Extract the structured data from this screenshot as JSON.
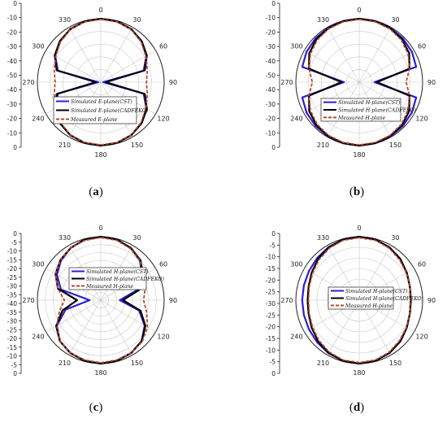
{
  "chart_data": [
    {
      "type": "polar-line",
      "caption": "(a)",
      "theta_ticks": [
        "0",
        "30",
        "60",
        "90",
        "120",
        "150",
        "180",
        "210",
        "240",
        "270",
        "300",
        "330"
      ],
      "r_ticks": [
        "0",
        "-10",
        "-20",
        "-30",
        "-40",
        "-50",
        "-40",
        "-30",
        "-20",
        "-10",
        "0"
      ],
      "rlim": [
        -50,
        0
      ],
      "legend": "center",
      "series": [
        {
          "name": "Simulated E-plane(CST)",
          "color": "#2a1fd4",
          "style": "solid",
          "theta": [
            0,
            15,
            30,
            45,
            60,
            75,
            90,
            105,
            120,
            135,
            150,
            165,
            180,
            195,
            210,
            225,
            240,
            255,
            270,
            285,
            300,
            315,
            330,
            345,
            360
          ],
          "values": [
            0,
            -0.5,
            -1.8,
            -4.5,
            -8.5,
            -15,
            -48,
            -15,
            -8.5,
            -4.5,
            -1.8,
            -0.5,
            0,
            -0.5,
            -1.8,
            -4.5,
            -8.5,
            -15,
            -48,
            -15,
            -8.5,
            -4.5,
            -1.8,
            -0.5,
            0
          ]
        },
        {
          "name": "Simulated E-plane(CADFEKO)",
          "color": "#000000",
          "style": "solid",
          "theta": [
            0,
            15,
            30,
            45,
            60,
            75,
            90,
            105,
            120,
            135,
            150,
            165,
            180,
            195,
            210,
            225,
            240,
            255,
            270,
            285,
            300,
            315,
            330,
            345,
            360
          ],
          "values": [
            0,
            -0.5,
            -1.8,
            -4.3,
            -8,
            -14,
            -46,
            -14,
            -8,
            -4.3,
            -1.8,
            -0.5,
            0,
            -0.5,
            -1.8,
            -4.3,
            -8,
            -14,
            -46,
            -14,
            -8,
            -4.3,
            -1.8,
            -0.5,
            0
          ]
        },
        {
          "name": "Measured E-plane",
          "color": "#b5482d",
          "style": "dashed",
          "theta": [
            0,
            15,
            30,
            45,
            60,
            75,
            90,
            105,
            120,
            135,
            150,
            165,
            180,
            195,
            210,
            225,
            240,
            255,
            270,
            285,
            300,
            315,
            330,
            345,
            360
          ],
          "values": [
            -0.5,
            -0.8,
            -2,
            -5,
            -9,
            -12,
            -14,
            -12,
            -9,
            -5,
            -2,
            -0.8,
            -0.5,
            -0.8,
            -2,
            -5,
            -9,
            -12,
            -14,
            -12,
            -9,
            -5,
            -2,
            -0.8,
            -0.5
          ]
        }
      ]
    },
    {
      "type": "polar-line",
      "caption": "(b)",
      "theta_ticks": [
        "0",
        "30",
        "60",
        "90",
        "120",
        "150",
        "180",
        "210",
        "240",
        "270",
        "300",
        "330"
      ],
      "r_ticks": [
        "0",
        "-10",
        "-20",
        "-30",
        "-40",
        "-50",
        "-40",
        "-30",
        "-20",
        "-10",
        "0"
      ],
      "rlim": [
        -50,
        0
      ],
      "legend": "center",
      "series": [
        {
          "name": "Simulated H-plane(CST)",
          "color": "#2a1fd4",
          "style": "solid",
          "theta": [
            0,
            15,
            30,
            45,
            60,
            75,
            90,
            105,
            120,
            135,
            150,
            165,
            180,
            195,
            210,
            225,
            240,
            255,
            270,
            285,
            300,
            315,
            330,
            345,
            360
          ],
          "values": [
            0,
            -0.2,
            -0.6,
            -1.2,
            -2,
            -3.5,
            -38,
            -3.5,
            -2,
            -1.2,
            -0.6,
            -0.2,
            0,
            -0.2,
            -0.6,
            -1.2,
            -2,
            -3.5,
            -38,
            -3.5,
            -2,
            -1.2,
            -0.6,
            -0.2,
            0
          ]
        },
        {
          "name": "Simulated H-plane(CADFEKO)",
          "color": "#000000",
          "style": "solid",
          "theta": [
            0,
            15,
            30,
            45,
            60,
            75,
            90,
            105,
            120,
            135,
            150,
            165,
            180,
            195,
            210,
            225,
            240,
            255,
            270,
            285,
            300,
            315,
            330,
            345,
            360
          ],
          "values": [
            0,
            -0.3,
            -1,
            -2.2,
            -4.5,
            -9,
            -36,
            -9,
            -4.5,
            -2.2,
            -1,
            -0.3,
            0,
            -0.3,
            -1,
            -2.2,
            -4.5,
            -9,
            -36,
            -9,
            -4.5,
            -2.2,
            -1,
            -0.3,
            0
          ]
        },
        {
          "name": "Measured H-plane",
          "color": "#b5482d",
          "style": "dashed",
          "theta": [
            0,
            15,
            30,
            45,
            60,
            75,
            90,
            105,
            120,
            135,
            150,
            165,
            180,
            195,
            210,
            225,
            240,
            255,
            270,
            285,
            300,
            315,
            330,
            345,
            360
          ],
          "values": [
            -0.5,
            -0.8,
            -1.5,
            -3,
            -5.5,
            -9,
            -13,
            -9,
            -5.5,
            -3,
            -1.5,
            -0.8,
            -0.5,
            -0.8,
            -1.5,
            -3,
            -5.5,
            -9,
            -13,
            -9,
            -5.5,
            -3,
            -1.5,
            -0.8,
            -0.5
          ]
        }
      ]
    },
    {
      "type": "polar-line",
      "caption": "(c)",
      "theta_ticks": [
        "0",
        "30",
        "60",
        "90",
        "120",
        "150",
        "180",
        "210",
        "240",
        "270",
        "300",
        "330"
      ],
      "r_ticks": [
        "0",
        "-5",
        "-10",
        "-15",
        "-20",
        "-25",
        "-30",
        "-35",
        "-40",
        "-35",
        "-30",
        "-25",
        "-20",
        "-15",
        "-10",
        "-5",
        "0"
      ],
      "rlim": [
        -40,
        0
      ],
      "legend": "center",
      "series": [
        {
          "name": "Simulated H-plane(CST)",
          "color": "#2a1fd4",
          "style": "solid",
          "theta": [
            0,
            15,
            30,
            45,
            60,
            75,
            90,
            105,
            120,
            135,
            150,
            165,
            180,
            195,
            210,
            225,
            240,
            255,
            270,
            285,
            300,
            315,
            330,
            345,
            360
          ],
          "values": [
            0,
            -0.5,
            -2,
            -5,
            -10,
            -17,
            -28,
            -15,
            -8,
            -3.5,
            -1.5,
            -0.5,
            0,
            -0.5,
            -1.5,
            -3.5,
            -8,
            -17,
            -33,
            -14,
            -8,
            -4.5,
            -2,
            -0.5,
            0
          ]
        },
        {
          "name": "Simulated H-plane(CADFEKO)",
          "color": "#000000",
          "style": "solid",
          "theta": [
            0,
            15,
            30,
            45,
            60,
            75,
            90,
            105,
            120,
            135,
            150,
            165,
            180,
            195,
            210,
            225,
            240,
            255,
            270,
            285,
            300,
            315,
            330,
            345,
            360
          ],
          "values": [
            0,
            -0.5,
            -2,
            -4.5,
            -9,
            -15,
            -26,
            -14,
            -7.5,
            -3.5,
            -1.5,
            -0.5,
            0,
            -0.5,
            -1.5,
            -3.5,
            -7.5,
            -15,
            -25,
            -12,
            -7,
            -4,
            -2,
            -0.5,
            0
          ]
        },
        {
          "name": "Measured H-plane",
          "color": "#b5482d",
          "style": "dashed",
          "theta": [
            0,
            15,
            30,
            45,
            60,
            75,
            90,
            105,
            120,
            135,
            150,
            165,
            180,
            195,
            210,
            225,
            240,
            255,
            270,
            285,
            300,
            315,
            330,
            345,
            360
          ],
          "values": [
            -0.5,
            -1,
            -2.5,
            -5,
            -8,
            -11,
            -13,
            -10,
            -6,
            -3,
            -1.5,
            -1,
            -0.5,
            -1,
            -1.5,
            -3.5,
            -8,
            -13,
            -17,
            -12,
            -7,
            -4,
            -2,
            -1,
            -0.5
          ]
        }
      ]
    },
    {
      "type": "polar-line",
      "caption": "(d)",
      "theta_ticks": [
        "0",
        "30",
        "60",
        "90",
        "120",
        "150",
        "180",
        "210",
        "240",
        "270",
        "300",
        "330"
      ],
      "r_ticks": [
        "0",
        "-5",
        "-10",
        "-15",
        "-20",
        "-25",
        "-30",
        "-25",
        "-20",
        "-15",
        "-10",
        "-5",
        "0"
      ],
      "rlim": [
        -30,
        0
      ],
      "legend": "center",
      "series": [
        {
          "name": "Simulated H-plane(CST)",
          "color": "#2a1fd4",
          "style": "solid",
          "theta": [
            0,
            15,
            30,
            45,
            60,
            75,
            90,
            105,
            120,
            135,
            150,
            165,
            180,
            195,
            210,
            225,
            240,
            255,
            270,
            285,
            300,
            315,
            330,
            345,
            360
          ],
          "values": [
            0,
            -0.3,
            -1.2,
            -2.5,
            -4,
            -5.2,
            -5.6,
            -5.2,
            -4,
            -2.5,
            -1.2,
            -0.3,
            0,
            -0.3,
            -1,
            -1.8,
            -2.5,
            -2.9,
            -3,
            -2.9,
            -2.5,
            -1.8,
            -1,
            -0.3,
            0
          ]
        },
        {
          "name": "Simulated H-plane(CADFEKO)",
          "color": "#000000",
          "style": "solid",
          "theta": [
            0,
            15,
            30,
            45,
            60,
            75,
            90,
            105,
            120,
            135,
            150,
            165,
            180,
            195,
            210,
            225,
            240,
            255,
            270,
            285,
            300,
            315,
            330,
            345,
            360
          ],
          "values": [
            0,
            -0.3,
            -1.2,
            -2.5,
            -4,
            -5.2,
            -5.6,
            -5.2,
            -4,
            -2.5,
            -1.2,
            -0.3,
            0,
            -0.3,
            -1.2,
            -2.5,
            -4,
            -5.2,
            -5.6,
            -5.2,
            -4,
            -2.5,
            -1.2,
            -0.3,
            0
          ]
        },
        {
          "name": "Measured H-plane",
          "color": "#b5482d",
          "style": "dashed",
          "theta": [
            0,
            15,
            30,
            45,
            60,
            75,
            90,
            105,
            120,
            135,
            150,
            165,
            180,
            195,
            210,
            225,
            240,
            255,
            270,
            285,
            300,
            315,
            330,
            345,
            360
          ],
          "values": [
            -0.5,
            -0.7,
            -1.6,
            -3,
            -4.2,
            -5.2,
            -5.8,
            -5.2,
            -4.2,
            -3,
            -1.6,
            -0.7,
            -0.5,
            -0.7,
            -1.6,
            -3,
            -4.5,
            -5.5,
            -6,
            -5.5,
            -4.5,
            -3,
            -1.6,
            -0.7,
            -0.5
          ]
        }
      ]
    }
  ]
}
